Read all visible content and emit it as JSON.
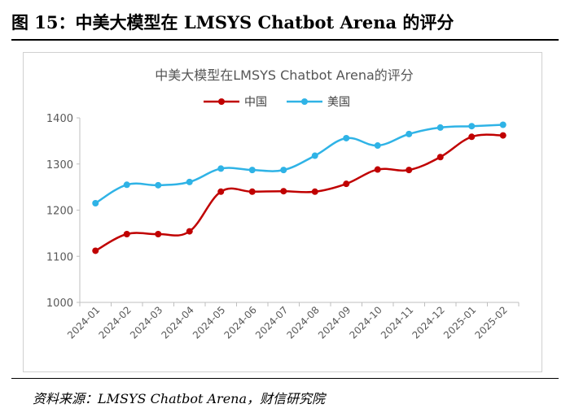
{
  "figure_title": "图 15：中美大模型在 LMSYS Chatbot Arena 的评分",
  "source": "资料来源：LMSYS Chatbot Arena，财信研究院",
  "chart_data": {
    "type": "line",
    "title": "中美大模型在LMSYS Chatbot Arena的评分",
    "categories": [
      "2024-01",
      "2024-02",
      "2024-03",
      "2024-04",
      "2024-05",
      "2024-06",
      "2024-07",
      "2024-08",
      "2024-09",
      "2024-10",
      "2024-11",
      "2024-12",
      "2025-01",
      "2025-02"
    ],
    "series": [
      {
        "name": "中国",
        "color": "#c00000",
        "values": [
          1112,
          1148,
          1148,
          1154,
          1240,
          1240,
          1241,
          1240,
          1257,
          1288,
          1287,
          1315,
          1359,
          1362
        ]
      },
      {
        "name": "美国",
        "color": "#2fb3e6",
        "values": [
          1215,
          1255,
          1254,
          1261,
          1290,
          1287,
          1287,
          1318,
          1356,
          1340,
          1365,
          1379,
          1382,
          1385
        ]
      }
    ],
    "ylim": [
      1000,
      1400
    ],
    "yticks": [
      1000,
      1100,
      1200,
      1300,
      1400
    ],
    "grid": false,
    "legend": "top-center",
    "xlabel": "",
    "ylabel": ""
  }
}
